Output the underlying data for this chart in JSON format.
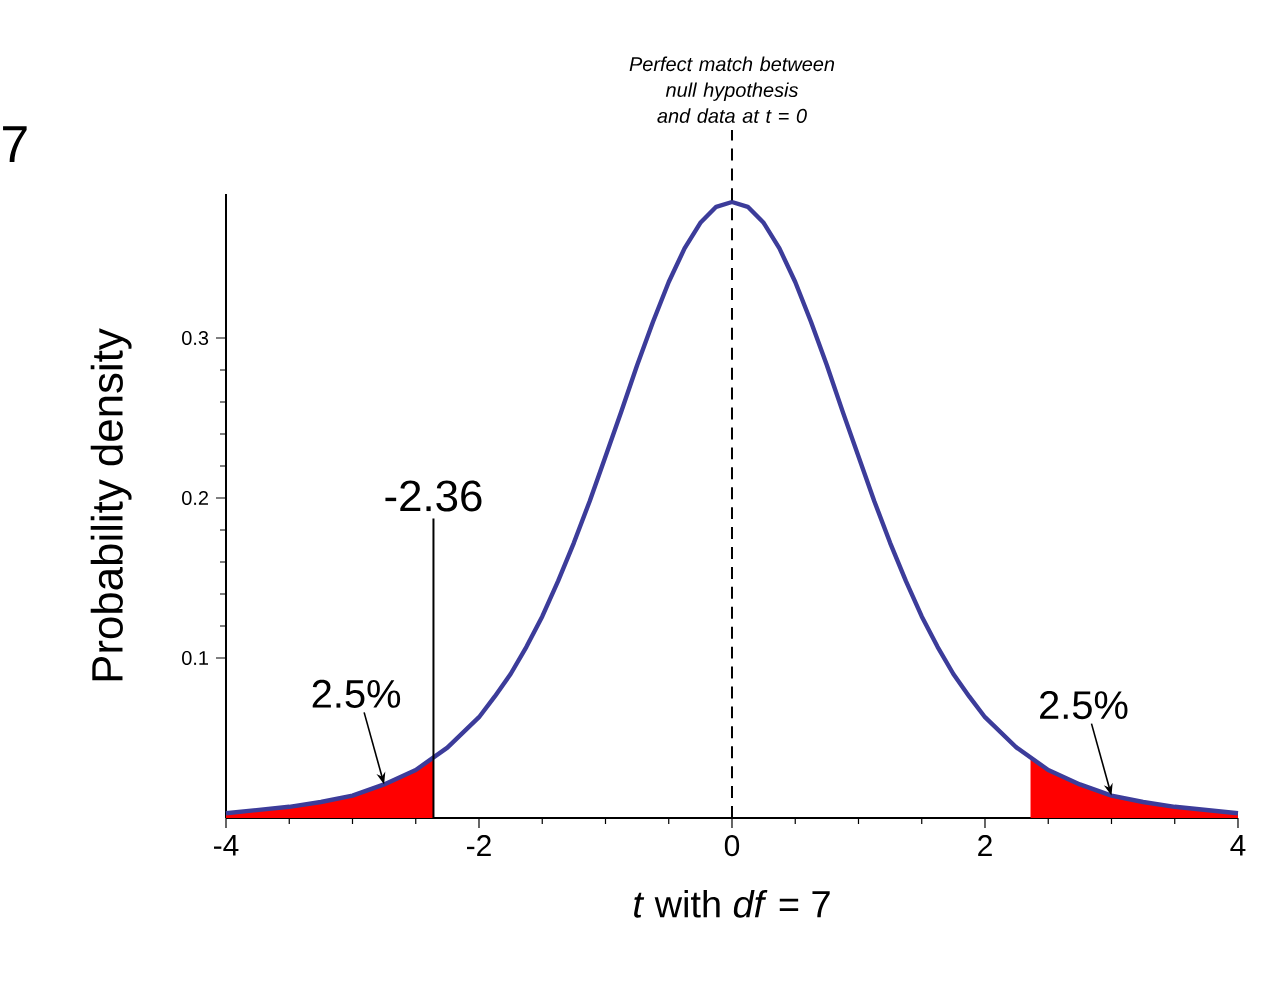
{
  "chart_data": {
    "type": "line",
    "xlabel": "*t* with *df* = 7",
    "ylabel": "Probability density",
    "xlim": [
      -4,
      4
    ],
    "ylim": [
      0,
      0.39
    ],
    "xticks": [
      -4,
      -2,
      0,
      2,
      4
    ],
    "yticks": [
      0.1,
      0.2,
      0.3
    ],
    "series": [
      {
        "type": "area",
        "color": "#ff0000",
        "x": [
          -4,
          -3.75,
          -3.5,
          -3.25,
          -3,
          -2.75,
          -2.5,
          -2.36
        ],
        "values": [
          0.003,
          0.005,
          0.007,
          0.01,
          0.014,
          0.021,
          0.03,
          0.037
        ]
      },
      {
        "type": "area",
        "color": "#ff0000",
        "x": [
          2.36,
          2.5,
          2.75,
          3,
          3.25,
          3.5,
          3.75,
          4
        ],
        "values": [
          0.037,
          0.03,
          0.021,
          0.014,
          0.01,
          0.007,
          0.005,
          0.003
        ]
      },
      {
        "color": "#3c3c9a",
        "x": [
          -4,
          -3.75,
          -3.5,
          -3.25,
          -3,
          -2.75,
          -2.5,
          -2.25,
          -2,
          -1.875,
          -1.75,
          -1.625,
          -1.5,
          -1.375,
          -1.25,
          -1.125,
          -1,
          -0.875,
          -0.75,
          -0.625,
          -0.5,
          -0.375,
          -0.25,
          -0.125,
          0,
          0.125,
          0.25,
          0.375,
          0.5,
          0.625,
          0.75,
          0.875,
          1,
          1.125,
          1.25,
          1.375,
          1.5,
          1.625,
          1.75,
          1.875,
          2,
          2.25,
          2.5,
          2.75,
          3,
          3.25,
          3.5,
          3.75,
          4
        ],
        "values": [
          0.003,
          0.005,
          0.007,
          0.01,
          0.014,
          0.021,
          0.03,
          0.044,
          0.063,
          0.076,
          0.09,
          0.107,
          0.126,
          0.148,
          0.172,
          0.198,
          0.226,
          0.254,
          0.283,
          0.31,
          0.335,
          0.356,
          0.372,
          0.382,
          0.385,
          0.382,
          0.372,
          0.356,
          0.335,
          0.31,
          0.283,
          0.254,
          0.226,
          0.198,
          0.172,
          0.148,
          0.126,
          0.107,
          0.09,
          0.076,
          0.063,
          0.044,
          0.03,
          0.021,
          0.014,
          0.01,
          0.007,
          0.005,
          0.003
        ]
      }
    ],
    "ref_lines": [
      {
        "axis": "x",
        "value": -2.36,
        "label": "-2.36",
        "color": "#000000",
        "line_style": "solid"
      },
      {
        "axis": "x",
        "value": 0,
        "label": "Perfect match between null hypothesis and data at t = 0",
        "color": "#000000",
        "line_style": "dashed"
      }
    ],
    "annotations": [
      "7",
      {
        "text": "2.5%",
        "x": -2.75,
        "y": 0.021
      },
      {
        "text": "2.5%",
        "x": 3,
        "y": 0.014
      }
    ]
  }
}
